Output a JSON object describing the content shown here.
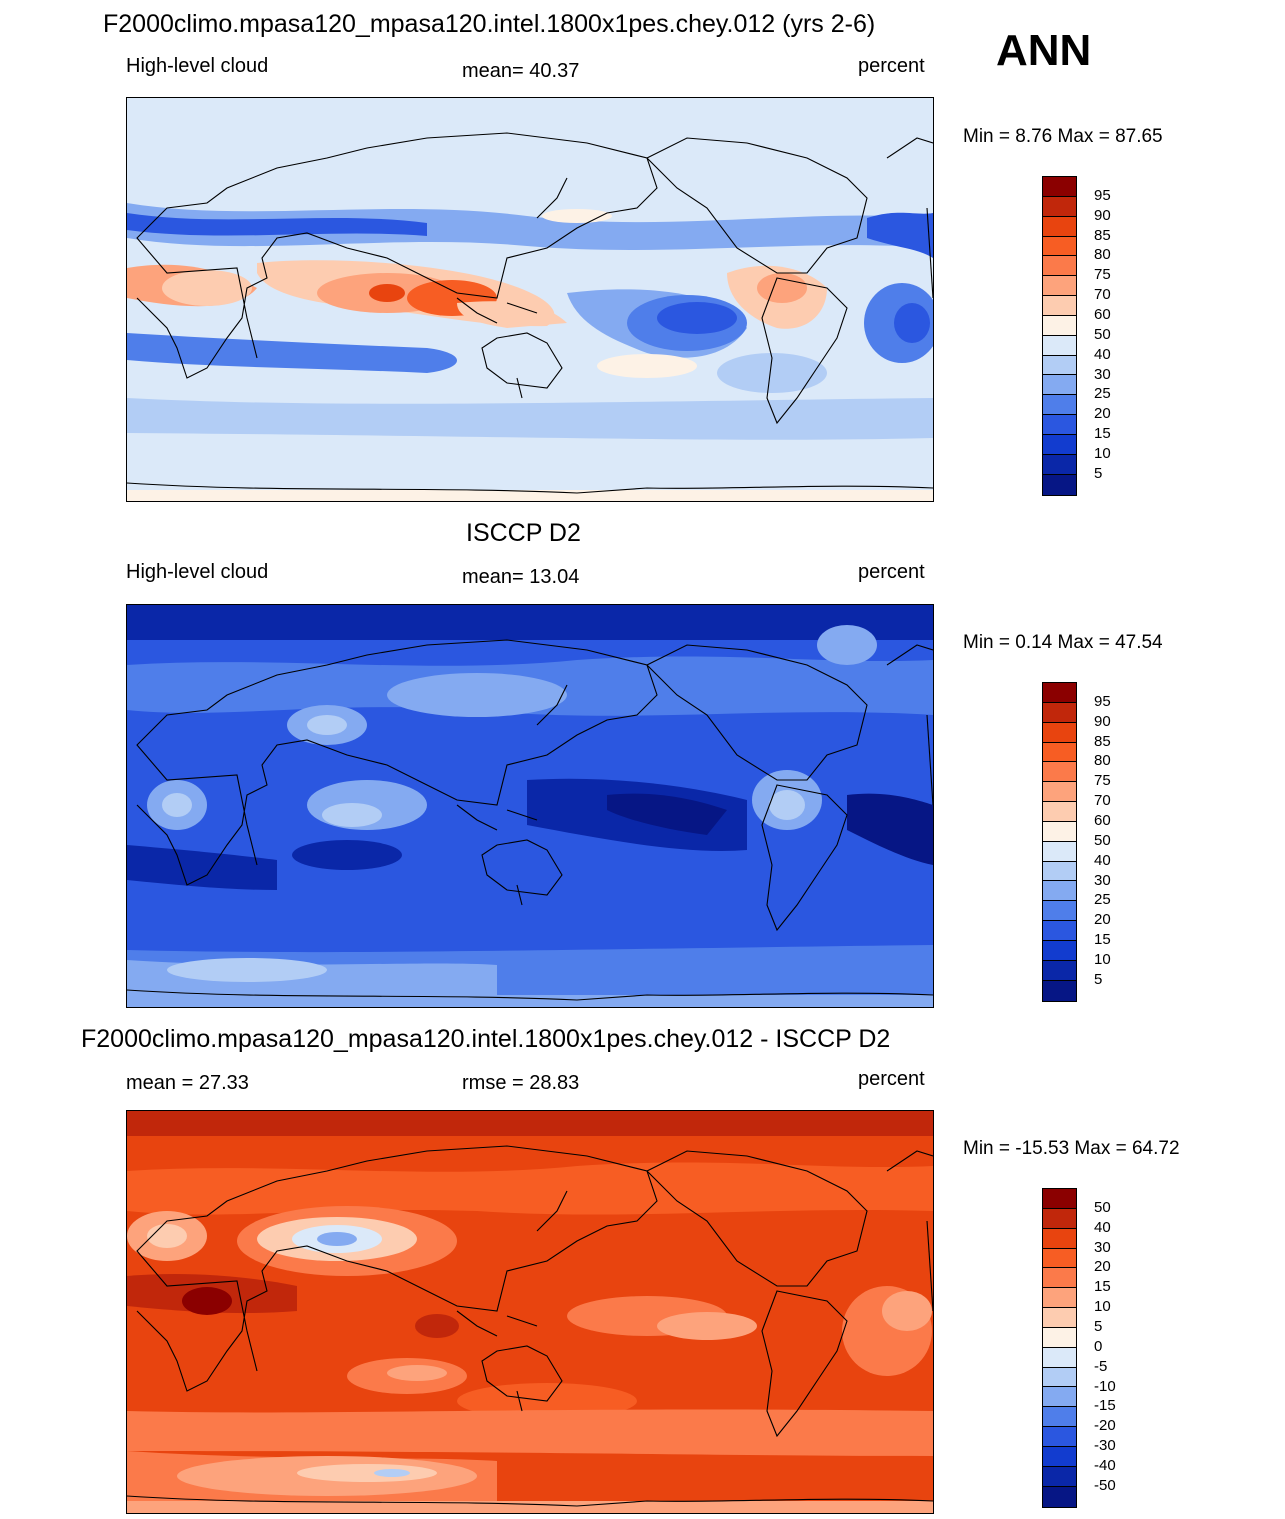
{
  "season": "ANN",
  "panels": [
    {
      "title": "F2000climo.mpasa120_mpasa120.intel.1800x1pes.chey.012 (yrs 2-6)",
      "left_label": "High-level cloud",
      "center_label": "mean=  40.37",
      "right_label": "percent",
      "minmax": "Min =   8.76 Max =  87.65",
      "colorbar": {
        "labels": [
          "95",
          "90",
          "85",
          "80",
          "75",
          "70",
          "60",
          "50",
          "40",
          "30",
          "25",
          "20",
          "15",
          "10",
          "5"
        ],
        "colors": [
          "#8b0000",
          "#c1270b",
          "#e8440f",
          "#f75d23",
          "#fb7a4a",
          "#fda37c",
          "#fdccb0",
          "#fdf2e6",
          "#dbe9f9",
          "#b2cdf5",
          "#84aaf1",
          "#4f7eea",
          "#2b57e0",
          "#123ccf",
          "#0a27a8",
          "#061685"
        ]
      },
      "map_style": "model"
    },
    {
      "title": "ISCCP D2",
      "left_label": "High-level cloud",
      "center_label": "mean=  13.04",
      "right_label": "percent",
      "minmax": "Min =   0.14 Max =  47.54",
      "colorbar": {
        "labels": [
          "95",
          "90",
          "85",
          "80",
          "75",
          "70",
          "60",
          "50",
          "40",
          "30",
          "25",
          "20",
          "15",
          "10",
          "5"
        ],
        "colors": [
          "#8b0000",
          "#c1270b",
          "#e8440f",
          "#f75d23",
          "#fb7a4a",
          "#fda37c",
          "#fdccb0",
          "#fdf2e6",
          "#dbe9f9",
          "#b2cdf5",
          "#84aaf1",
          "#4f7eea",
          "#2b57e0",
          "#123ccf",
          "#0a27a8",
          "#061685"
        ]
      },
      "map_style": "obs"
    },
    {
      "title": "F2000climo.mpasa120_mpasa120.intel.1800x1pes.chey.012 - ISCCP D2",
      "left_label": "mean =  27.33",
      "center_label": "rmse =  28.83",
      "right_label": "percent",
      "minmax": "Min = -15.53 Max =  64.72",
      "colorbar": {
        "labels": [
          "50",
          "40",
          "30",
          "20",
          "15",
          "10",
          "5",
          "0",
          "-5",
          "-10",
          "-15",
          "-20",
          "-30",
          "-40",
          "-50"
        ],
        "colors": [
          "#8b0000",
          "#c1270b",
          "#e8440f",
          "#f75d23",
          "#fb7a4a",
          "#fda37c",
          "#fdccb0",
          "#fdf2e6",
          "#dbe9f9",
          "#b2cdf5",
          "#84aaf1",
          "#4f7eea",
          "#2b57e0",
          "#123ccf",
          "#0a27a8",
          "#061685"
        ]
      },
      "map_style": "diff"
    }
  ]
}
